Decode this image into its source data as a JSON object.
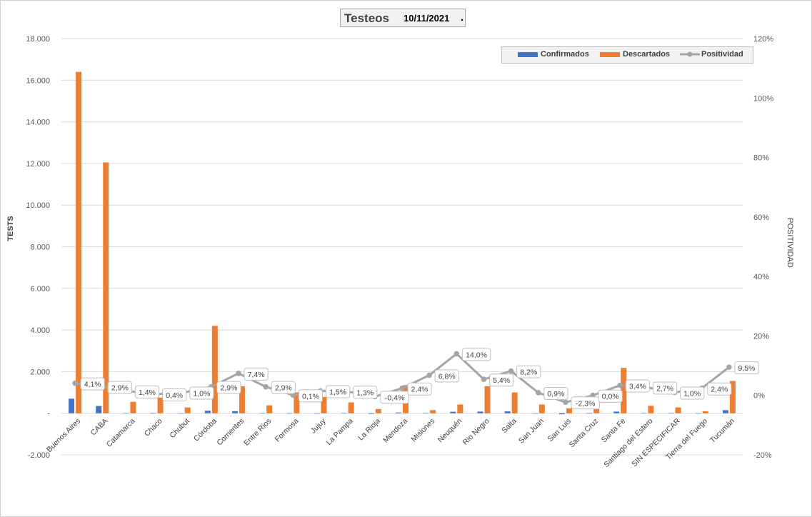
{
  "chart_data": {
    "type": "bar",
    "title": "Testeos",
    "title_date": "10/11/2021",
    "title_suffix": ".",
    "ylabel": "TESTS",
    "y2label": "POSITIVIDAD",
    "ylim": [
      -2000,
      18000
    ],
    "y2lim": [
      -0.2,
      1.2
    ],
    "yticks": [
      "-2.000",
      "-",
      "2.000",
      "4.000",
      "6.000",
      "8.000",
      "10.000",
      "12.000",
      "14.000",
      "16.000",
      "18.000"
    ],
    "y2ticks": [
      "-20%",
      "0%",
      "20%",
      "40%",
      "60%",
      "80%",
      "100%",
      "120%"
    ],
    "grid": true,
    "legend_position": "top-right",
    "categories": [
      "Buenos Aires",
      "CABA",
      "Catamarca",
      "Chaco",
      "Chubut",
      "Córdoba",
      "Corrientes",
      "Entre Rios",
      "Formosa",
      "Jujuy",
      "La Pampa",
      "La Rioja",
      "Mendoza",
      "Misiones",
      "Neuquén",
      "Rio Negro",
      "Salta",
      "San Juan",
      "San Luis",
      "Santa Cruz",
      "Santa Fe",
      "Santiago del Estero",
      "SIN ESPECIFICAR",
      "Tierra del Fuego",
      "Tucumán"
    ],
    "series": [
      {
        "name": "Confirmados",
        "type": "bar",
        "axis": "left",
        "color": "#4472C4",
        "values": [
          700,
          350,
          10,
          5,
          5,
          120,
          100,
          15,
          5,
          5,
          10,
          -30,
          35,
          10,
          70,
          80,
          90,
          5,
          -50,
          5,
          80,
          10,
          10,
          5,
          150
        ]
      },
      {
        "name": "Descartados",
        "type": "bar",
        "axis": "left",
        "color": "#ED7D31",
        "values": [
          16400,
          12050,
          550,
          750,
          280,
          4200,
          1300,
          380,
          1000,
          780,
          520,
          200,
          1350,
          150,
          420,
          1300,
          1000,
          420,
          230,
          200,
          2180,
          360,
          280,
          100,
          1550
        ]
      },
      {
        "name": "Positividad",
        "type": "line",
        "axis": "right",
        "color": "#A5A5A5",
        "values": [
          0.041,
          0.029,
          0.014,
          0.004,
          0.01,
          0.029,
          0.074,
          0.029,
          0.001,
          0.015,
          0.013,
          -0.004,
          0.024,
          0.068,
          0.14,
          0.054,
          0.082,
          0.009,
          -0.023,
          0.0,
          0.034,
          0.027,
          0.01,
          0.024,
          0.095
        ],
        "labels": [
          "4,1%",
          "2,9%",
          "1,4%",
          "0,4%",
          "1,0%",
          "2,9%",
          "7,4%",
          "2,9%",
          "0,1%",
          "1,5%",
          "1,3%",
          "-0,4%",
          "2,4%",
          "6,8%",
          "14,0%",
          "5,4%",
          "8,2%",
          "0,9%",
          "-2,3%",
          "0,0%",
          "3,4%",
          "2,7%",
          "1,0%",
          "2,4%",
          "9,5%"
        ]
      }
    ]
  }
}
